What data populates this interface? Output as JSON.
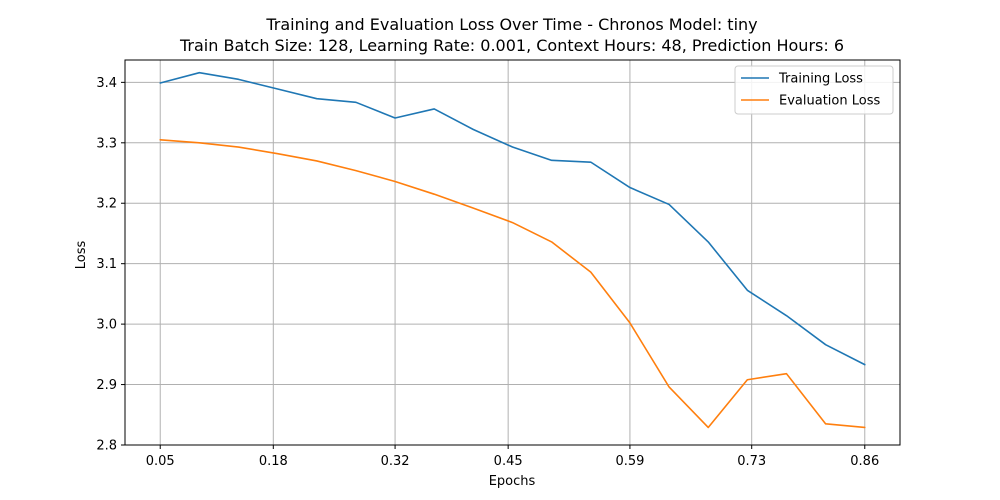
{
  "chart_data": {
    "type": "line",
    "title": "Training and Evaluation Loss Over Time - Chronos Model: tiny",
    "subtitle": "Train Batch Size: 128, Learning Rate: 0.001, Context Hours: 48, Prediction Hours: 6",
    "xlabel": "Epochs",
    "ylabel": "Loss",
    "x_tick_labels": [
      "0.05",
      "0.18",
      "0.32",
      "0.45",
      "0.59",
      "0.73",
      "0.86"
    ],
    "x_tick_values": [
      0.05,
      0.18,
      0.32,
      0.45,
      0.59,
      0.73,
      0.86
    ],
    "y_tick_labels": [
      "2.8",
      "2.9",
      "3.0",
      "3.1",
      "3.2",
      "3.3",
      "3.4"
    ],
    "y_tick_values": [
      2.8,
      2.9,
      3.0,
      3.1,
      3.2,
      3.3,
      3.4
    ],
    "xlim": [
      0.0095,
      0.9005
    ],
    "ylim": [
      2.8,
      3.437
    ],
    "grid": true,
    "legend_position": "top-right",
    "x": [
      0.05,
      0.095,
      0.14,
      0.185,
      0.23,
      0.275,
      0.32,
      0.365,
      0.41,
      0.455,
      0.5,
      0.545,
      0.59,
      0.635,
      0.68,
      0.725,
      0.77,
      0.815,
      0.86
    ],
    "series": [
      {
        "name": "Training Loss",
        "color": "#1f77b4",
        "values": [
          3.399,
          3.416,
          3.405,
          3.389,
          3.373,
          3.367,
          3.341,
          3.356,
          3.322,
          3.293,
          3.271,
          3.268,
          3.226,
          3.198,
          3.136,
          3.056,
          3.014,
          2.966,
          2.933
        ]
      },
      {
        "name": "Evaluation Loss",
        "color": "#ff7f0e",
        "values": [
          3.305,
          3.3,
          3.293,
          3.282,
          3.27,
          3.254,
          3.236,
          3.215,
          3.192,
          3.168,
          3.136,
          3.086,
          3.002,
          2.896,
          2.829,
          2.908,
          2.918,
          2.835,
          2.829
        ]
      }
    ]
  }
}
